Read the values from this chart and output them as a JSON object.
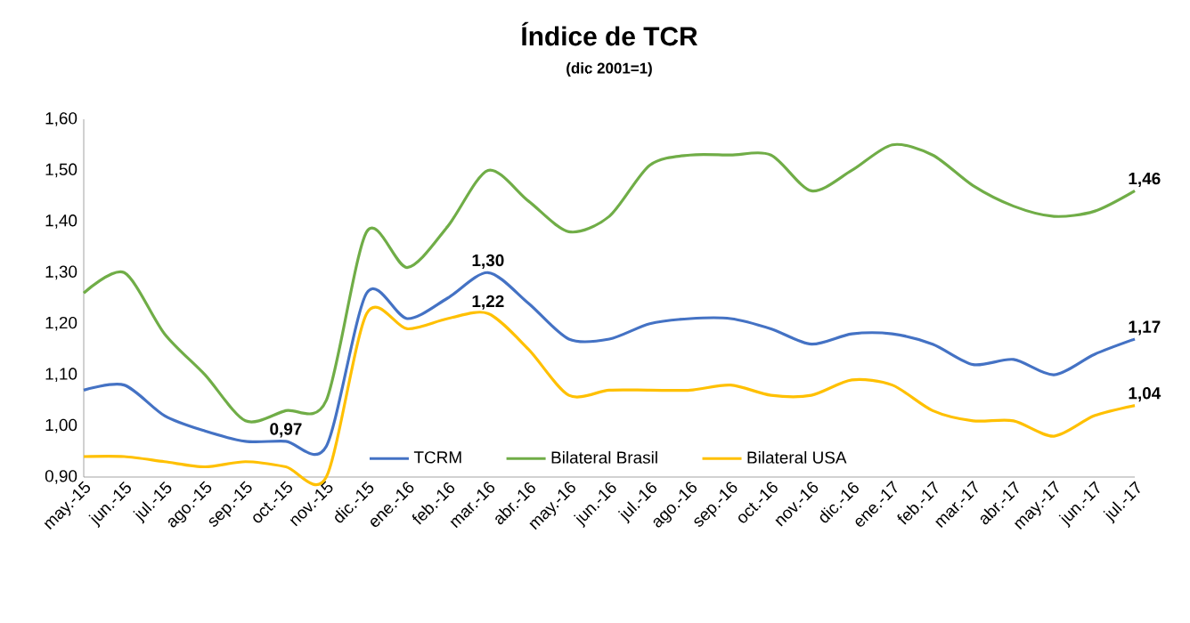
{
  "chart_data": {
    "type": "line",
    "title": "Índice de TCR",
    "subtitle": "(dic 2001=1)",
    "categories": [
      "may.-15",
      "jun.-15",
      "jul.-15",
      "ago.-15",
      "sep.-15",
      "oct.-15",
      "nov.-15",
      "dic.-15",
      "ene.-16",
      "feb.-16",
      "mar.-16",
      "abr.-16",
      "may.-16",
      "jun.-16",
      "jul.-16",
      "ago.-16",
      "sep.-16",
      "oct.-16",
      "nov.-16",
      "dic.-16",
      "ene.-17",
      "feb.-17",
      "mar.-17",
      "abr.-17",
      "may.-17",
      "jun.-17",
      "jul.-17"
    ],
    "series": [
      {
        "name": "TCRM",
        "color": "#4472c4",
        "values": [
          1.07,
          1.08,
          1.02,
          0.99,
          0.97,
          0.97,
          0.96,
          1.26,
          1.21,
          1.25,
          1.3,
          1.24,
          1.17,
          1.17,
          1.2,
          1.21,
          1.21,
          1.19,
          1.16,
          1.18,
          1.18,
          1.16,
          1.12,
          1.13,
          1.1,
          1.14,
          1.17
        ],
        "value_labels": [
          null,
          null,
          null,
          null,
          null,
          "0,97",
          null,
          null,
          null,
          null,
          "1,30",
          null,
          null,
          null,
          null,
          null,
          null,
          null,
          null,
          null,
          null,
          null,
          null,
          null,
          null,
          null,
          "1,17"
        ]
      },
      {
        "name": "Bilateral Brasil",
        "color": "#70ad47",
        "values": [
          1.26,
          1.3,
          1.18,
          1.1,
          1.01,
          1.03,
          1.05,
          1.38,
          1.31,
          1.39,
          1.5,
          1.44,
          1.38,
          1.41,
          1.51,
          1.53,
          1.53,
          1.53,
          1.46,
          1.5,
          1.55,
          1.53,
          1.47,
          1.43,
          1.41,
          1.42,
          1.46
        ],
        "value_labels": [
          null,
          null,
          null,
          null,
          null,
          null,
          null,
          null,
          null,
          null,
          null,
          null,
          null,
          null,
          null,
          null,
          null,
          null,
          null,
          null,
          null,
          null,
          null,
          null,
          null,
          null,
          "1,46"
        ]
      },
      {
        "name": "Bilateral USA",
        "color": "#ffc000",
        "values": [
          0.94,
          0.94,
          0.93,
          0.92,
          0.93,
          0.92,
          0.9,
          1.22,
          1.19,
          1.21,
          1.22,
          1.15,
          1.06,
          1.07,
          1.07,
          1.07,
          1.08,
          1.06,
          1.06,
          1.09,
          1.08,
          1.03,
          1.01,
          1.01,
          0.98,
          1.02,
          1.04
        ],
        "value_labels": [
          null,
          null,
          null,
          null,
          null,
          null,
          null,
          null,
          null,
          null,
          "1,22",
          null,
          null,
          null,
          null,
          null,
          null,
          null,
          null,
          null,
          null,
          null,
          null,
          null,
          null,
          null,
          "1,04"
        ]
      }
    ],
    "ylim": [
      0.9,
      1.6
    ],
    "yticks": [
      {
        "value": 0.9,
        "label": "0,90"
      },
      {
        "value": 1.0,
        "label": "1,00"
      },
      {
        "value": 1.1,
        "label": "1,10"
      },
      {
        "value": 1.2,
        "label": "1,20"
      },
      {
        "value": 1.3,
        "label": "1,30"
      },
      {
        "value": 1.4,
        "label": "1,40"
      },
      {
        "value": 1.5,
        "label": "1,50"
      },
      {
        "value": 1.6,
        "label": "1,60"
      }
    ],
    "legend": "bottom"
  }
}
